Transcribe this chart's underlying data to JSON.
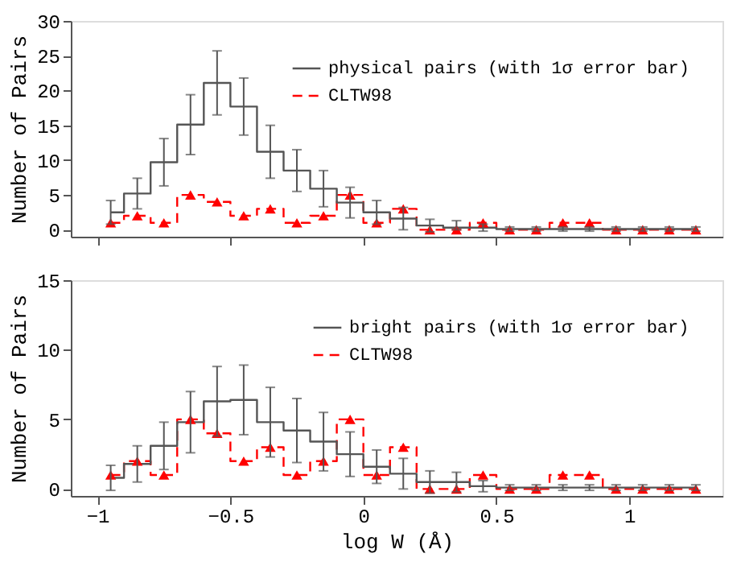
{
  "chart_data": [
    {
      "type": "step",
      "ylabel": "Number of Pairs",
      "x": [
        -0.95,
        -0.85,
        -0.75,
        -0.65,
        -0.55,
        -0.45,
        -0.35,
        -0.25,
        -0.15,
        -0.05,
        0.05,
        0.15,
        0.25,
        0.35,
        0.45,
        0.55,
        0.65,
        0.75,
        0.85,
        0.95,
        1.05,
        1.15,
        1.25
      ],
      "series": [
        {
          "name": "physical pairs (with 1σ error bar)",
          "color": "#555555",
          "line_style": "solid",
          "marker": "none",
          "values": [
            2.5,
            5.2,
            9.7,
            15.1,
            21.1,
            17.7,
            11.2,
            8.5,
            5.9,
            3.9,
            2.5,
            1.6,
            0.6,
            0.3,
            0.3,
            0.1,
            0.1,
            0.1,
            0.1,
            0.1,
            0.1,
            0.1,
            0.1
          ],
          "errors": [
            1.7,
            2.2,
            3.4,
            4.3,
            4.6,
            4.1,
            3.8,
            3.0,
            2.6,
            2.2,
            1.7,
            1.6,
            0.9,
            [
              0.0,
              1.3
            ],
            0.5,
            0.3,
            0.3,
            0.3,
            0.3,
            0.3,
            0.3,
            0.3,
            0.3
          ]
        },
        {
          "name": "CLTW98",
          "color": "#ff0000",
          "line_style": "dashed",
          "marker": "triangle",
          "values": [
            1,
            2,
            1,
            5,
            4,
            2,
            3,
            1,
            2,
            5,
            1,
            3,
            0,
            0,
            1,
            0,
            0,
            1,
            1,
            0,
            0,
            0,
            0
          ]
        }
      ],
      "xlim": [
        -1.1,
        1.35
      ],
      "xticks": [
        -1,
        -0.5,
        0,
        0.5,
        1
      ],
      "ylim": [
        -1,
        30
      ],
      "yticks": [
        0,
        5,
        10,
        15,
        20,
        25,
        30
      ],
      "tick_labels": "y",
      "grid": false,
      "legend": "top right"
    },
    {
      "type": "step",
      "xlabel": "log W (Å)",
      "ylabel": "Number of Pairs",
      "x": [
        -0.95,
        -0.85,
        -0.75,
        -0.65,
        -0.55,
        -0.45,
        -0.35,
        -0.25,
        -0.15,
        -0.05,
        0.05,
        0.15,
        0.25,
        0.35,
        0.45,
        0.55,
        0.65,
        0.75,
        0.85,
        0.95,
        1.05,
        1.15,
        1.25
      ],
      "series": [
        {
          "name": "bright pairs (with 1σ error bar)",
          "color": "#555555",
          "line_style": "solid",
          "marker": "none",
          "values": [
            0.8,
            1.8,
            3.1,
            4.8,
            6.3,
            6.4,
            4.8,
            4.2,
            3.4,
            2.5,
            1.6,
            1.1,
            0.5,
            0.5,
            0.2,
            0.1,
            0.1,
            0.1,
            0.1,
            0.1,
            0.1,
            0.1,
            0.1
          ],
          "errors": [
            0.9,
            1.3,
            1.7,
            2.2,
            2.5,
            2.5,
            2.5,
            2.3,
            2.1,
            1.6,
            1.2,
            1.1,
            0.8,
            0.7,
            0.4,
            0.2,
            0.2,
            0.2,
            0.2,
            0.2,
            0.2,
            0.2,
            0.2
          ]
        },
        {
          "name": "CLTW98",
          "color": "#ff0000",
          "line_style": "dashed",
          "marker": "triangle",
          "values": [
            1,
            2,
            1,
            5,
            4,
            2,
            3,
            1,
            2,
            5,
            1,
            3,
            0,
            0,
            1,
            0,
            0,
            1,
            1,
            0,
            0,
            0,
            0
          ]
        }
      ],
      "xlim": [
        -1.1,
        1.35
      ],
      "xticks": [
        {
          "value": -1,
          "label": "−1"
        },
        {
          "value": -0.5,
          "label": "−0.5"
        },
        0,
        0.5,
        1
      ],
      "ylim": [
        -0.5,
        15
      ],
      "yticks": [
        0,
        5,
        10,
        15
      ],
      "grid": false,
      "legend": "top right"
    }
  ]
}
